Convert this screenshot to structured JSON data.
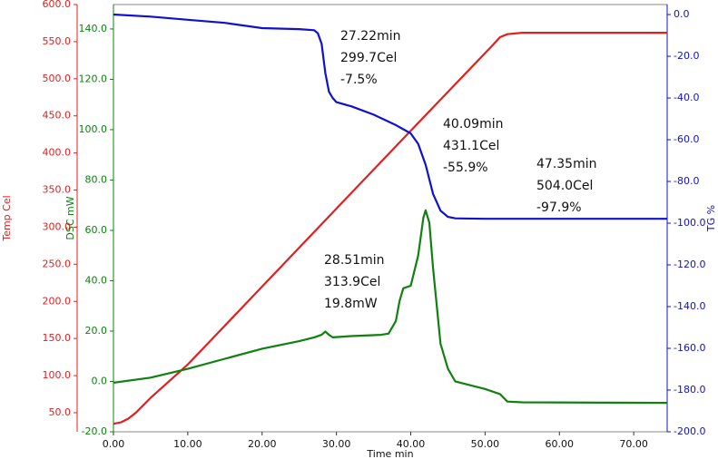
{
  "chart_data": {
    "type": "line",
    "xlabel": "Time min",
    "ylabel": "Temp Cel",
    "y2label": "TG %",
    "y3label": "DSC mW",
    "xlim": [
      0,
      74.5
    ],
    "xticks": [
      {
        "value": 0,
        "label": "0.00"
      },
      {
        "value": 10,
        "label": "10.00"
      },
      {
        "value": 20,
        "label": "20.00"
      },
      {
        "value": 30,
        "label": "30.00"
      },
      {
        "value": 40,
        "label": "40.00"
      },
      {
        "value": 50,
        "label": "50.00"
      },
      {
        "value": 60,
        "label": "60.00"
      },
      {
        "value": 70,
        "label": "70.00"
      }
    ],
    "ylim": [
      24.3,
      600
    ],
    "ycolor": "#e02020",
    "yticks": [
      {
        "value": 50,
        "label": "50.0"
      },
      {
        "value": 100,
        "label": "100.0"
      },
      {
        "value": 150,
        "label": "150.0"
      },
      {
        "value": 200,
        "label": "200.0"
      },
      {
        "value": 250,
        "label": "250.0"
      },
      {
        "value": 300,
        "label": "300.0"
      },
      {
        "value": 350,
        "label": "350.0"
      },
      {
        "value": 400,
        "label": "400.0"
      },
      {
        "value": 450,
        "label": "450.0"
      },
      {
        "value": 500,
        "label": "500.0"
      },
      {
        "value": 550,
        "label": "550.0"
      },
      {
        "value": 600,
        "label": "600.0"
      }
    ],
    "y2lim": [
      -200,
      4.8
    ],
    "y2color": "#1010d0",
    "y2ticks": [
      {
        "value": 0,
        "label": "0.0"
      },
      {
        "value": -20,
        "label": "-20.0"
      },
      {
        "value": -40,
        "label": "-40.0"
      },
      {
        "value": -60,
        "label": "-60.0"
      },
      {
        "value": -80,
        "label": "-80.0"
      },
      {
        "value": -100,
        "label": "-100.0"
      },
      {
        "value": -120,
        "label": "-120.0"
      },
      {
        "value": -140,
        "label": "-140.0"
      },
      {
        "value": -160,
        "label": "-160.0"
      },
      {
        "value": -180,
        "label": "-180.0"
      },
      {
        "value": -200,
        "label": "-200.0"
      }
    ],
    "y3lim": [
      -20,
      149.7
    ],
    "y3color": "#108010",
    "y3ticks": [
      {
        "value": -20,
        "label": "-20.0"
      },
      {
        "value": 0,
        "label": "0.0"
      },
      {
        "value": 20,
        "label": "20.0"
      },
      {
        "value": 40,
        "label": "40.0"
      },
      {
        "value": 60,
        "label": "60.0"
      },
      {
        "value": 80,
        "label": "80.0"
      },
      {
        "value": 100,
        "label": "100.0"
      },
      {
        "value": 120,
        "label": "120.0"
      },
      {
        "value": 140,
        "label": "140.0"
      }
    ],
    "series": [
      {
        "color": "#e02020",
        "axis": "y",
        "x": [
          0,
          1,
          2,
          3,
          4,
          5,
          10,
          20,
          30,
          40,
          51,
          52,
          53,
          55,
          74.5
        ],
        "values": [
          35,
          37,
          42,
          50,
          60,
          70,
          115,
          220,
          325,
          430,
          545,
          556,
          560,
          562,
          562
        ]
      },
      {
        "color": "#1010d0",
        "axis": "y2",
        "x": [
          0,
          5,
          10,
          15,
          20,
          25,
          27,
          27.5,
          28,
          28.5,
          29,
          29.5,
          30,
          32,
          35,
          38,
          39,
          40,
          41,
          42,
          43,
          44,
          45,
          46,
          50,
          74.5
        ],
        "values": [
          0,
          -1,
          -2.5,
          -4,
          -6.5,
          -7,
          -7.5,
          -9,
          -14,
          -28,
          -37,
          -40,
          -42,
          -44,
          -48,
          -53,
          -55,
          -57,
          -62,
          -72,
          -86,
          -94,
          -97,
          -97.7,
          -97.9,
          -97.9
        ]
      },
      {
        "color": "#108010",
        "axis": "y3",
        "x": [
          0,
          5,
          10,
          15,
          20,
          25,
          27,
          28,
          28.5,
          29,
          29.5,
          32,
          36,
          37,
          38,
          38.5,
          39,
          40,
          41,
          41.7,
          42,
          42.5,
          43,
          44,
          45,
          46,
          48,
          50,
          52,
          53,
          55,
          74.5
        ],
        "values": [
          -0.5,
          1.5,
          5,
          9,
          13,
          16,
          17.5,
          18.5,
          19.8,
          18.5,
          17.5,
          18,
          18.5,
          19,
          24,
          32,
          37,
          38,
          50,
          65,
          68,
          63,
          45,
          15,
          5,
          0,
          -1.5,
          -3,
          -5,
          -8,
          -8.3,
          -8.5
        ]
      }
    ],
    "annotations": [
      {
        "lines": [
          "27.22min",
          "299.7Cel",
          "-7.5%"
        ]
      },
      {
        "lines": [
          "40.09min",
          "431.1Cel",
          "-55.9%"
        ]
      },
      {
        "lines": [
          "47.35min",
          "504.0Cel",
          "-97.9%"
        ]
      },
      {
        "lines": [
          "28.51min",
          "313.9Cel",
          "19.8mW"
        ]
      }
    ]
  }
}
